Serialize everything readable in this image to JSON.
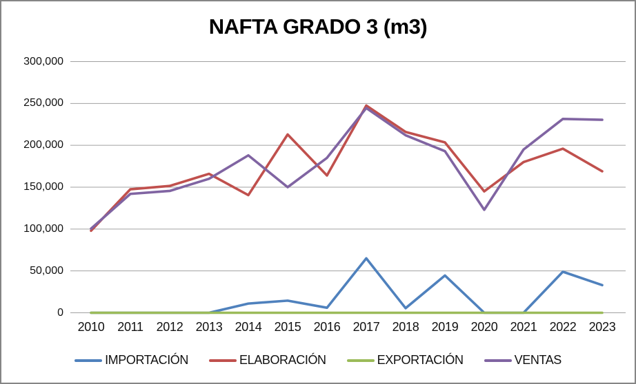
{
  "window": {
    "background": "#ffffff",
    "border_color": "#858585"
  },
  "chart_data": {
    "type": "line",
    "title": "NAFTA GRADO 3 (m3)",
    "x": [
      "2010",
      "2011",
      "2012",
      "2013",
      "2014",
      "2015",
      "2016",
      "2017",
      "2018",
      "2019",
      "2020",
      "2021",
      "2022",
      "2023"
    ],
    "series": [
      {
        "name": "IMPORTACIÓN",
        "color": "#4F81BD",
        "values": [
          0,
          0,
          0,
          0,
          11000,
          14500,
          6000,
          65000,
          5500,
          44500,
          0,
          0,
          49000,
          33000
        ]
      },
      {
        "name": "ELABORACIÓN",
        "color": "#C0504D",
        "values": [
          98000,
          147500,
          151500,
          166000,
          140500,
          213000,
          164000,
          247500,
          216000,
          203500,
          145000,
          180000,
          196000,
          169000
        ]
      },
      {
        "name": "EXPORTACIÓN",
        "color": "#9BBB59",
        "values": [
          0,
          0,
          0,
          0,
          0,
          0,
          0,
          0,
          0,
          0,
          0,
          0,
          0,
          0
        ]
      },
      {
        "name": "VENTAS",
        "color": "#8064A2",
        "values": [
          100500,
          142000,
          145500,
          160000,
          188000,
          150000,
          185000,
          244500,
          212000,
          193000,
          123000,
          195000,
          231500,
          230500
        ]
      }
    ],
    "ylim": [
      0,
      300000
    ],
    "ytick_step": 50000,
    "ytick_labels": [
      "0",
      "50,000",
      "100,000",
      "150,000",
      "200,000",
      "250,000",
      "300,000"
    ],
    "grid": true,
    "legend_position": "bottom",
    "gridline_color": "#a0a0a0"
  }
}
